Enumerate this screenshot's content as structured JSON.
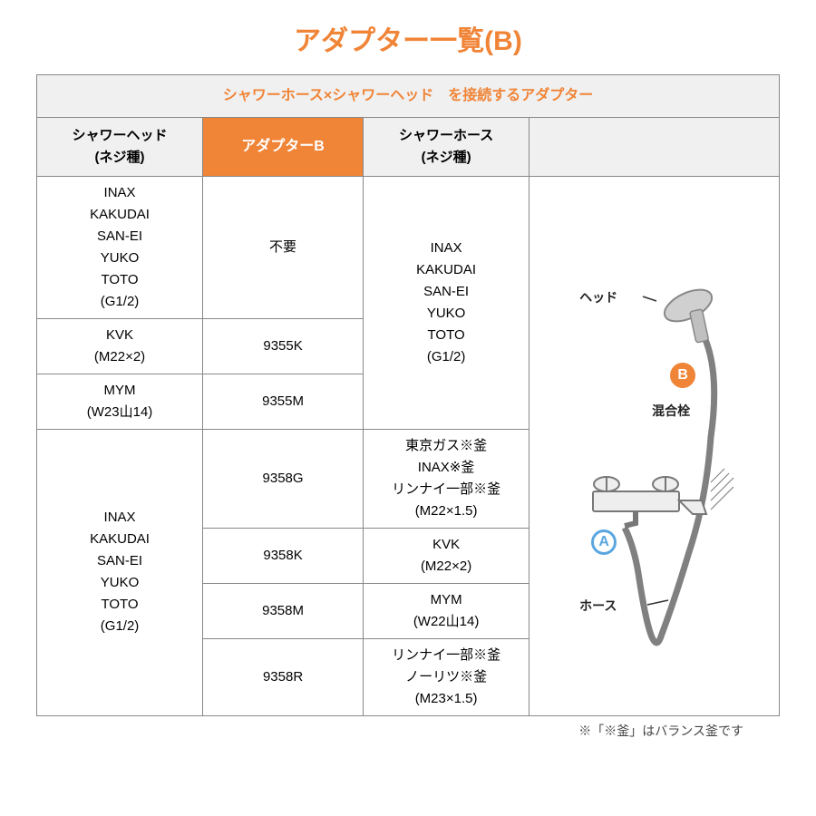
{
  "colors": {
    "accent_orange": "#f08437",
    "accent_blue": "#5aa6e0",
    "title_orange": "#f08437",
    "caption_orange": "#f08437",
    "head_bg": "#f0f0f0",
    "border": "#888888",
    "text": "#333333",
    "diagram_shower": "#c0c0c0",
    "diagram_hose": "#808080",
    "diagram_faucet": "#777777"
  },
  "title": "アダプター一覧(B)",
  "table": {
    "caption": "シャワーホース×シャワーヘッド　を接続するアダプター",
    "head": {
      "c1": "シャワーヘッド\n(ネジ種)",
      "c2": "アダプターB",
      "c3": "シャワーホース\n(ネジ種)"
    },
    "group1": {
      "head_lines": [
        "INAX",
        "KAKUDAI",
        "SAN-EI",
        "YUKO",
        "TOTO",
        "(G1/2)"
      ],
      "adapter": "不要",
      "hose_lines": [
        "INAX",
        "KAKUDAI",
        "SAN-EI",
        "YUKO",
        "TOTO",
        "(G1/2)"
      ],
      "r2_head": "KVK\n(M22×2)",
      "r2_adapter": "9355K",
      "r3_head": "MYM\n(W23山14)",
      "r3_adapter": "9355M"
    },
    "group2": {
      "head_lines": [
        "INAX",
        "KAKUDAI",
        "SAN-EI",
        "YUKO",
        "TOTO",
        "(G1/2)"
      ],
      "r1_adapter": "9358G",
      "r1_hose_lines": [
        "東京ガス※釜",
        "INAX※釜",
        "リンナイ一部※釜",
        "(M22×1.5)"
      ],
      "r2_adapter": "9358K",
      "r2_hose": "KVK\n(M22×2)",
      "r3_adapter": "9358M",
      "r3_hose": "MYM\n(W22山14)",
      "r4_adapter": "9358R",
      "r4_hose_lines": [
        "リンナイ一部※釜",
        "ノーリツ※釜",
        "(M23×1.5)"
      ]
    }
  },
  "diagram": {
    "label_head": "ヘッド",
    "label_mixer": "混合栓",
    "label_hose": "ホース",
    "badge_b": "B",
    "badge_a": "A"
  },
  "footnote": "※「※釜」はバランス釜です"
}
